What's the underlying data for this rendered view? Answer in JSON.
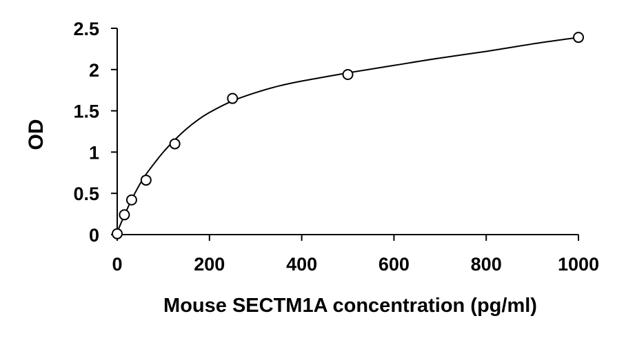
{
  "chart_data": {
    "type": "scatter",
    "title": "",
    "xlabel": "Mouse SECTM1A concentration (pg/ml)",
    "ylabel": "OD",
    "xlim": [
      0,
      1000
    ],
    "ylim": [
      0,
      2.5
    ],
    "x_ticks": [
      0,
      200,
      400,
      600,
      800,
      1000
    ],
    "x_tick_labels": [
      "0",
      "200",
      "400",
      "600",
      "800",
      "1000"
    ],
    "y_ticks": [
      0,
      0.5,
      1,
      1.5,
      2,
      2.5
    ],
    "y_tick_labels": [
      "0",
      "0.5",
      "1",
      "1.5",
      "2",
      "2.5"
    ],
    "grid": false,
    "legend": false,
    "series": [
      {
        "marker": "open-circle",
        "x": [
          0,
          15.6,
          31.25,
          62.5,
          125,
          250,
          500,
          1000
        ],
        "y": [
          0.01,
          0.24,
          0.42,
          0.66,
          1.1,
          1.65,
          1.94,
          2.39
        ]
      }
    ],
    "fit_curve": {
      "x": [
        0,
        20,
        40,
        60,
        80,
        100,
        125,
        150,
        175,
        200,
        250,
        300,
        350,
        400,
        500,
        600,
        700,
        800,
        900,
        1000
      ],
      "y": [
        0.03,
        0.29,
        0.52,
        0.71,
        0.86,
        1.0,
        1.15,
        1.28,
        1.39,
        1.48,
        1.62,
        1.72,
        1.8,
        1.86,
        1.96,
        2.05,
        2.14,
        2.22,
        2.31,
        2.39
      ]
    },
    "colors": {
      "axis": "#000000",
      "marker_stroke": "#000000",
      "marker_fill": "#ffffff",
      "curve": "#000000"
    }
  }
}
